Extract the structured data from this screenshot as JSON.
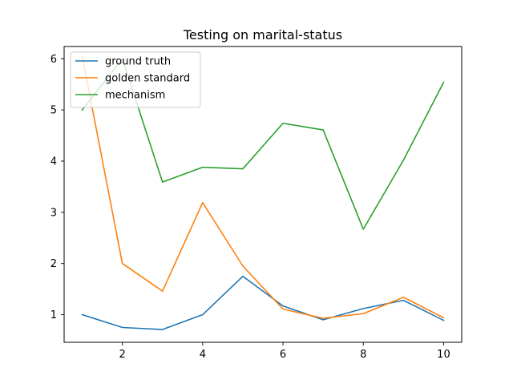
{
  "chart_data": {
    "type": "line",
    "title": "Testing on marital-status",
    "xlabel": "",
    "ylabel": "",
    "x": [
      1,
      2,
      3,
      4,
      5,
      6,
      7,
      8,
      9,
      10
    ],
    "xlim": [
      0.55,
      10.45
    ],
    "ylim": [
      0.46,
      6.24
    ],
    "xticks": [
      2,
      4,
      6,
      8,
      10
    ],
    "yticks": [
      1,
      2,
      3,
      4,
      5,
      6
    ],
    "grid": false,
    "legend_position": "upper-left",
    "series": [
      {
        "name": "ground truth",
        "color": "#1f77b4",
        "values": [
          1.0,
          0.75,
          0.71,
          1.0,
          1.75,
          1.17,
          0.9,
          1.12,
          1.28,
          0.89
        ]
      },
      {
        "name": "golden standard",
        "color": "#ff7f0e",
        "values": [
          6.05,
          2.0,
          1.46,
          3.19,
          1.95,
          1.11,
          0.93,
          1.02,
          1.34,
          0.94
        ]
      },
      {
        "name": "mechanism",
        "color": "#2ca02c",
        "values": [
          5.0,
          6.0,
          3.59,
          3.88,
          3.85,
          4.74,
          4.61,
          2.67,
          4.02,
          5.54
        ]
      }
    ]
  }
}
